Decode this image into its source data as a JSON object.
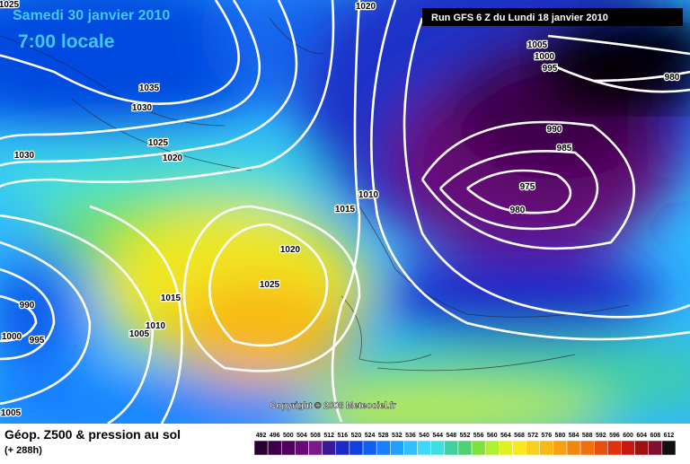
{
  "header": {
    "date": "Samedi 30 janvier 2010",
    "time": "7:00 locale",
    "run": "Run GFS 6 Z du Lundi 18 janvier 2010",
    "copyright": "Copyright © 2008 Meteociel.fr"
  },
  "footer": {
    "title": "Géop. Z500 & pression au sol",
    "lead": "(+ 288h)"
  },
  "isobars": [
    "1025",
    "1020",
    "1005",
    "1000",
    "995",
    "980",
    "1035",
    "1030",
    "990",
    "1025",
    "985",
    "1030",
    "1020",
    "975",
    "1010",
    "980",
    "1015",
    "1020",
    "1025",
    "1015",
    "990",
    "1010",
    "1005",
    "1000",
    "995",
    "1005"
  ],
  "legend": {
    "labels": [
      "492",
      "496",
      "500",
      "504",
      "508",
      "512",
      "516",
      "520",
      "524",
      "528",
      "532",
      "536",
      "540",
      "544",
      "548",
      "552",
      "556",
      "560",
      "564",
      "568",
      "572",
      "576",
      "580",
      "584",
      "588",
      "592",
      "596",
      "600",
      "604",
      "608",
      "612"
    ],
    "colors": [
      "#2a0030",
      "#3c0048",
      "#520060",
      "#680a78",
      "#7a1a8c",
      "#3a1a9a",
      "#1a2ac8",
      "#1040e0",
      "#1060f0",
      "#1880ff",
      "#20a0ff",
      "#30c0ff",
      "#40d8ff",
      "#40e0e0",
      "#40d0a0",
      "#50d070",
      "#80e040",
      "#b0f030",
      "#e0f020",
      "#f8e820",
      "#f8d020",
      "#f8b818",
      "#f8a010",
      "#f08810",
      "#f07010",
      "#e85010",
      "#e03010",
      "#c81810",
      "#a01010",
      "#801030",
      "#101010"
    ]
  }
}
